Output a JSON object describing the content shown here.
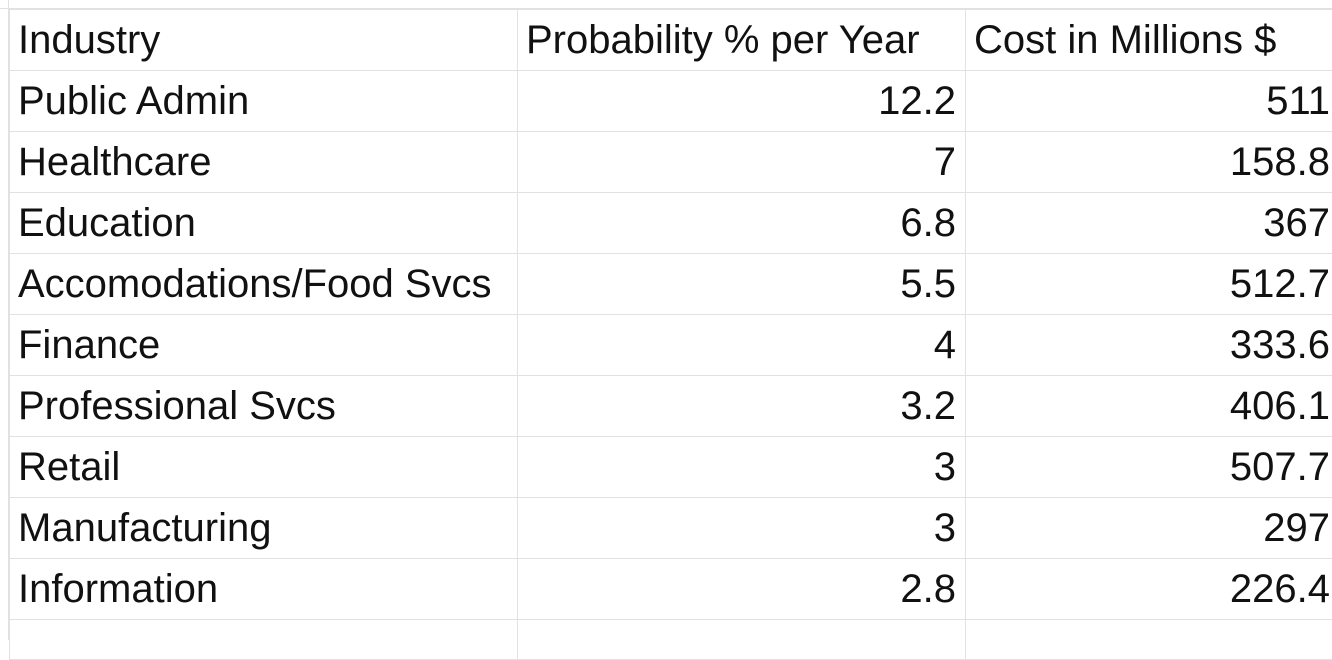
{
  "sheet": {
    "headers": {
      "industry": "Industry",
      "probability": "Probability % per Year",
      "cost": "Cost in Millions $"
    },
    "rows": [
      {
        "industry": "Public Admin",
        "probability": "12.2",
        "cost": "511"
      },
      {
        "industry": "Healthcare",
        "probability": "7",
        "cost": "158.8"
      },
      {
        "industry": "Education",
        "probability": "6.8",
        "cost": "367"
      },
      {
        "industry": "Accomodations/Food Svcs",
        "probability": "5.5",
        "cost": "512.7"
      },
      {
        "industry": "Finance",
        "probability": "4",
        "cost": "333.6"
      },
      {
        "industry": "Professional Svcs",
        "probability": "3.2",
        "cost": "406.1"
      },
      {
        "industry": "Retail",
        "probability": "3",
        "cost": "507.7"
      },
      {
        "industry": "Manufacturing",
        "probability": "3",
        "cost": "297"
      },
      {
        "industry": "Information",
        "probability": "2.8",
        "cost": "226.4"
      }
    ]
  },
  "colors": {
    "gridline": "#e1e1e1",
    "text": "#111111",
    "background": "#ffffff"
  }
}
